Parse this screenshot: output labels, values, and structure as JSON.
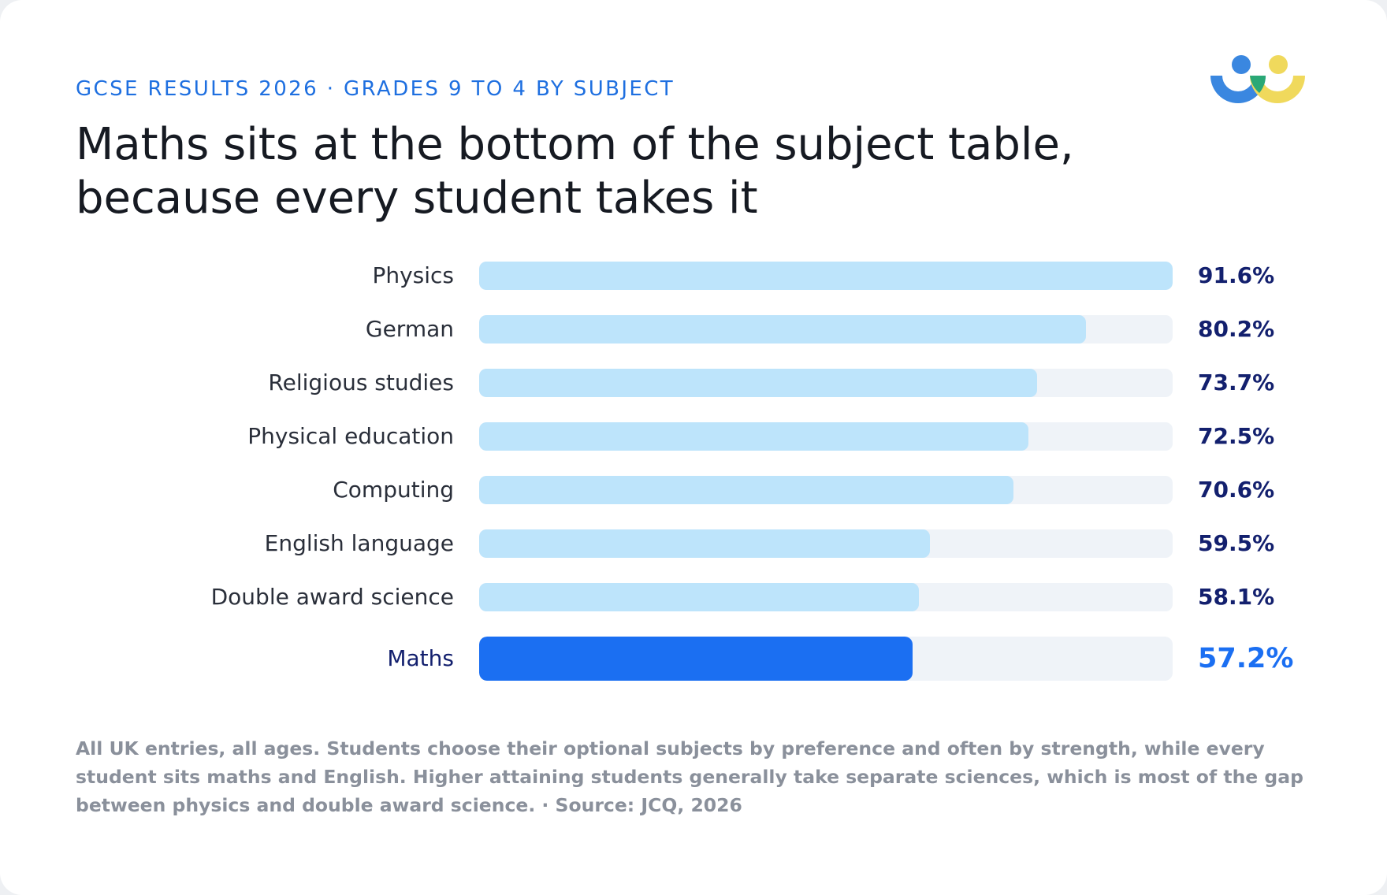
{
  "eyebrow": "GCSE RESULTS 2026 · GRADES 9 TO 4 BY SUBJECT",
  "headline_line1": "Maths sits at the bottom of the subject table,",
  "headline_line2": "because every student takes it",
  "footnote": "All UK entries, all ages. Students choose their optional subjects by preference and often by strength, while every student sits maths and English. Higher attaining students generally take separate sciences, which is most of the gap between physics and double award science. · Source: JCQ, 2026",
  "colors": {
    "eyebrow": "#1e6fe0",
    "bar": "#bde4fb",
    "bar_highlight": "#1b6ff2",
    "track": "#eff3f8",
    "value": "#13206e",
    "logo_blue": "#3a87e0",
    "logo_green": "#2aa876",
    "logo_yellow": "#f0d95c"
  },
  "logo": {
    "icon": "two-people-logo-icon"
  },
  "chart_data": {
    "type": "bar",
    "orientation": "horizontal",
    "title": "Maths sits at the bottom of the subject table, because every student takes it",
    "xlim": [
      0,
      91.6
    ],
    "unit": "%",
    "grid": false,
    "legend": "none",
    "highlight": "Maths",
    "categories": [
      "Physics",
      "German",
      "Religious studies",
      "Physical education",
      "Computing",
      "English language",
      "Double award science",
      "Maths"
    ],
    "values": [
      91.6,
      80.2,
      73.7,
      72.5,
      70.6,
      59.5,
      58.1,
      57.2
    ],
    "value_labels": [
      "91.6%",
      "80.2%",
      "73.7%",
      "72.5%",
      "70.6%",
      "59.5%",
      "58.1%",
      "57.2%"
    ]
  }
}
